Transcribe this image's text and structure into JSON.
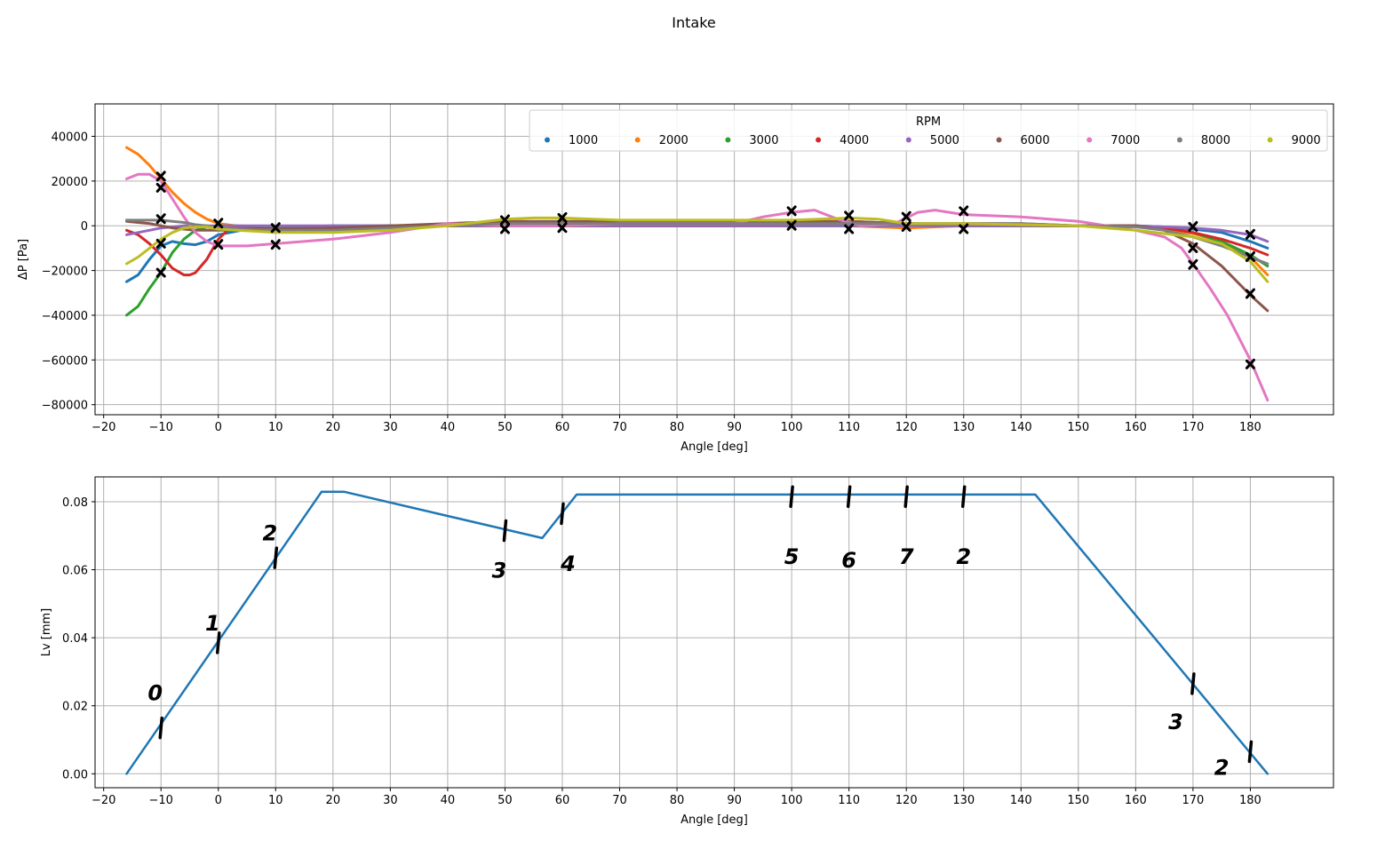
{
  "figure": {
    "suptitle": "Intake"
  },
  "chart_data": [
    {
      "type": "scatter",
      "xlabel": "Angle [deg]",
      "ylabel": "ΔP [Pa]",
      "xlim": [
        -21.5,
        194.5
      ],
      "ylim": [
        -84500,
        54500
      ],
      "xticks": [
        -20,
        -10,
        0,
        10,
        20,
        30,
        40,
        50,
        60,
        70,
        80,
        90,
        100,
        110,
        120,
        130,
        140,
        150,
        160,
        170,
        180
      ],
      "yticks": [
        -80000,
        -60000,
        -40000,
        -20000,
        0,
        20000,
        40000
      ],
      "xtick_labels": [
        "−20",
        "−10",
        "0",
        "10",
        "20",
        "30",
        "40",
        "50",
        "60",
        "70",
        "80",
        "90",
        "100",
        "110",
        "120",
        "130",
        "140",
        "150",
        "160",
        "170",
        "180"
      ],
      "ytick_labels": [
        "−80000",
        "−60000",
        "−40000",
        "−20000",
        "0",
        "20000",
        "40000"
      ],
      "grid": true,
      "legend": {
        "title": "RPM",
        "placement": "top-right",
        "ncol": 9
      },
      "series": [
        {
          "name": "1000",
          "color": "#1f77b4",
          "x": [
            -16,
            -14,
            -12,
            -10,
            -8,
            -6,
            -4,
            -2,
            0,
            5,
            10,
            20,
            30,
            40,
            50,
            60,
            70,
            80,
            90,
            100,
            110,
            120,
            130,
            140,
            150,
            160,
            165,
            170,
            175,
            180,
            183
          ],
          "y": [
            -25000,
            -22000,
            -15000,
            -9000,
            -7000,
            -8000,
            -8500,
            -7000,
            -4000,
            -1500,
            -500,
            0,
            0,
            0,
            0,
            0,
            0,
            0,
            0,
            0,
            0,
            0,
            0,
            0,
            0,
            0,
            -500,
            -1500,
            -3000,
            -7000,
            -10000
          ]
        },
        {
          "name": "2000",
          "color": "#ff7f0e",
          "x": [
            -16,
            -14,
            -12,
            -10,
            -8,
            -6,
            -4,
            -2,
            0,
            3,
            10,
            20,
            30,
            40,
            50,
            60,
            70,
            80,
            90,
            100,
            110,
            120,
            130,
            140,
            150,
            160,
            165,
            170,
            175,
            180,
            183
          ],
          "y": [
            35000,
            32000,
            27000,
            21000,
            15000,
            10000,
            6000,
            3000,
            1000,
            0,
            -1000,
            -1000,
            -500,
            0,
            0,
            0,
            0,
            0,
            0,
            0,
            0,
            -1000,
            0,
            0,
            0,
            0,
            -1500,
            -3500,
            -7000,
            -14000,
            -22000
          ]
        },
        {
          "name": "3000",
          "color": "#2ca02c",
          "x": [
            -16,
            -14,
            -12,
            -10,
            -8,
            -6,
            -4,
            -2,
            0,
            3,
            10,
            20,
            30,
            40,
            50,
            60,
            70,
            80,
            90,
            100,
            110,
            120,
            130,
            140,
            150,
            160,
            165,
            170,
            175,
            180,
            183
          ],
          "y": [
            -40000,
            -36000,
            -28000,
            -21000,
            -12000,
            -6000,
            -2000,
            -500,
            0,
            0,
            -500,
            -500,
            0,
            0,
            0,
            0,
            0,
            0,
            0,
            0,
            0,
            0,
            0,
            0,
            0,
            0,
            -1000,
            -3000,
            -7000,
            -13000,
            -18000
          ]
        },
        {
          "name": "4000",
          "color": "#d62728",
          "x": [
            -16,
            -14,
            -12,
            -10,
            -8,
            -6,
            -5,
            -4,
            -2,
            0,
            2,
            10,
            20,
            30,
            40,
            50,
            60,
            70,
            80,
            90,
            100,
            110,
            120,
            130,
            140,
            150,
            160,
            165,
            170,
            175,
            180,
            183
          ],
          "y": [
            -2000,
            -4000,
            -8000,
            -13000,
            -19000,
            -22000,
            -22000,
            -21000,
            -15000,
            -6000,
            -1000,
            -1500,
            -1000,
            0,
            0,
            0,
            0,
            0,
            0,
            0,
            0,
            2000,
            1000,
            0,
            0,
            0,
            0,
            -1000,
            -3000,
            -6000,
            -10000,
            -13000
          ]
        },
        {
          "name": "5000",
          "color": "#9467bd",
          "x": [
            -16,
            -14,
            -12,
            -10,
            -8,
            -6,
            -4,
            -2,
            0,
            10,
            20,
            30,
            40,
            50,
            60,
            70,
            80,
            90,
            100,
            110,
            120,
            130,
            140,
            150,
            160,
            165,
            170,
            175,
            180,
            183
          ],
          "y": [
            -4000,
            -3000,
            -2000,
            -1000,
            -500,
            0,
            0,
            0,
            0,
            0,
            0,
            0,
            0,
            0,
            0,
            0,
            0,
            0,
            0,
            0,
            0,
            0,
            0,
            0,
            0,
            -500,
            -1000,
            -2000,
            -4000,
            -7000
          ]
        },
        {
          "name": "6000",
          "color": "#8c564b",
          "x": [
            -16,
            -12,
            -10,
            -8,
            -4,
            0,
            10,
            20,
            30,
            40,
            50,
            60,
            70,
            80,
            90,
            100,
            110,
            120,
            130,
            140,
            150,
            160,
            165,
            170,
            175,
            180,
            183
          ],
          "y": [
            2000,
            1000,
            0,
            -1000,
            -2000,
            -2000,
            -1500,
            -1000,
            0,
            1000,
            2000,
            2000,
            2000,
            2000,
            2000,
            2000,
            2000,
            1000,
            1000,
            1000,
            0,
            0,
            -2000,
            -8000,
            -18000,
            -31000,
            -38000
          ]
        },
        {
          "name": "7000",
          "color": "#e377c2",
          "x": [
            -16,
            -14,
            -12,
            -10,
            -8,
            -6,
            -4,
            -2,
            0,
            5,
            10,
            20,
            30,
            40,
            50,
            60,
            70,
            80,
            90,
            95,
            100,
            104,
            108,
            112,
            118,
            122,
            125,
            130,
            140,
            150,
            155,
            160,
            165,
            168,
            170,
            173,
            176,
            180,
            183
          ],
          "y": [
            21000,
            23000,
            23000,
            20000,
            12000,
            4000,
            -3000,
            -7000,
            -9000,
            -9000,
            -8000,
            -6000,
            -3000,
            1000,
            0,
            0,
            1000,
            1000,
            1000,
            4000,
            6000,
            7000,
            3000,
            0,
            1000,
            6000,
            7000,
            5000,
            4000,
            2000,
            0,
            -2000,
            -5000,
            -10000,
            -17000,
            -28000,
            -40000,
            -60000,
            -78000
          ]
        },
        {
          "name": "8000",
          "color": "#7f7f7f",
          "x": [
            -16,
            -14,
            -12,
            -10,
            -8,
            -6,
            -4,
            -2,
            0,
            10,
            20,
            30,
            40,
            50,
            60,
            70,
            80,
            90,
            100,
            110,
            120,
            130,
            140,
            150,
            160,
            165,
            170,
            175,
            180,
            183
          ],
          "y": [
            2500,
            2500,
            2500,
            2500,
            2000,
            1500,
            500,
            0,
            -1000,
            -2000,
            -2000,
            -1000,
            0,
            1000,
            1000,
            1000,
            1000,
            1000,
            1000,
            1000,
            1000,
            1000,
            1000,
            0,
            -500,
            -2000,
            -5000,
            -9000,
            -14000,
            -17000
          ]
        },
        {
          "name": "9000",
          "color": "#bcbd22",
          "x": [
            -16,
            -14,
            -12,
            -10,
            -8,
            -6,
            -4,
            -2,
            0,
            10,
            20,
            30,
            40,
            45,
            50,
            55,
            60,
            70,
            80,
            90,
            100,
            105,
            110,
            115,
            120,
            130,
            140,
            150,
            160,
            165,
            170,
            175,
            180,
            183
          ],
          "y": [
            -17000,
            -14000,
            -10000,
            -6000,
            -3000,
            -1000,
            -500,
            -500,
            -1500,
            -3000,
            -3000,
            -2000,
            0,
            1500,
            3000,
            3500,
            3500,
            2500,
            2500,
            2500,
            2500,
            3000,
            3500,
            3000,
            1000,
            1000,
            500,
            0,
            -2000,
            -3500,
            -5000,
            -8000,
            -16000,
            -25000
          ]
        }
      ]
    },
    {
      "type": "line",
      "xlabel": "Angle [deg]",
      "ylabel": "Lv [mm]",
      "xlim": [
        -21.5,
        194.5
      ],
      "ylim": [
        -0.0041,
        0.0873
      ],
      "xticks": [
        -20,
        -10,
        0,
        10,
        20,
        30,
        40,
        50,
        60,
        70,
        80,
        90,
        100,
        110,
        120,
        130,
        140,
        150,
        160,
        170,
        180
      ],
      "yticks": [
        0.0,
        0.02,
        0.04,
        0.06,
        0.08
      ],
      "xtick_labels": [
        "−20",
        "−10",
        "0",
        "10",
        "20",
        "30",
        "40",
        "50",
        "60",
        "70",
        "80",
        "90",
        "100",
        "110",
        "120",
        "130",
        "140",
        "150",
        "160",
        "170",
        "180"
      ],
      "ytick_labels": [
        "0.00",
        "0.02",
        "0.04",
        "0.06",
        "0.08"
      ],
      "grid": true,
      "series": [
        {
          "color": "#1f77b4",
          "x": [
            -16,
            18,
            22,
            56.5,
            62.5,
            142.5,
            183
          ],
          "y": [
            0.0,
            0.0829,
            0.0829,
            0.0693,
            0.0821,
            0.0821,
            0.0
          ]
        }
      ]
    }
  ],
  "annotations": {
    "top_cross_marks": [
      [
        -10,
        22000
      ],
      [
        -10,
        17000
      ],
      [
        -10,
        3000
      ],
      [
        -10,
        -8000
      ],
      [
        -10,
        -21000
      ],
      [
        0,
        1000
      ],
      [
        0,
        -8500
      ],
      [
        10,
        -1000
      ],
      [
        10,
        -8500
      ],
      [
        50,
        2500
      ],
      [
        50,
        -1500
      ],
      [
        60,
        3500
      ],
      [
        60,
        -1000
      ],
      [
        100,
        6500
      ],
      [
        100,
        0
      ],
      [
        110,
        4500
      ],
      [
        110,
        -1500
      ],
      [
        120,
        4000
      ],
      [
        120,
        -500
      ],
      [
        130,
        6500
      ],
      [
        130,
        -1500
      ],
      [
        170,
        -500
      ],
      [
        170,
        -10000
      ],
      [
        170,
        -17500
      ],
      [
        180,
        -4000
      ],
      [
        180,
        -14000
      ],
      [
        180,
        -30500
      ],
      [
        180,
        -62000
      ]
    ],
    "bottom_tick_marks": [
      [
        -10,
        0.0135
      ],
      [
        0,
        0.0385
      ],
      [
        10,
        0.0635
      ],
      [
        50,
        0.0715
      ],
      [
        60,
        0.0765
      ],
      [
        100,
        0.0815
      ],
      [
        110,
        0.0815
      ],
      [
        120,
        0.0815
      ],
      [
        130,
        0.0815
      ],
      [
        170,
        0.0265
      ],
      [
        180,
        0.0065
      ]
    ],
    "bottom_handwritten": [
      {
        "text": "0",
        "x": -11,
        "y": 0.0235
      },
      {
        "text": "1",
        "x": -1,
        "y": 0.044
      },
      {
        "text": "2",
        "x": 9,
        "y": 0.0705
      },
      {
        "text": "3",
        "x": 49,
        "y": 0.0595
      },
      {
        "text": "4",
        "x": 61,
        "y": 0.0615
      },
      {
        "text": "5",
        "x": 100,
        "y": 0.0635
      },
      {
        "text": "6",
        "x": 110,
        "y": 0.0625
      },
      {
        "text": "7",
        "x": 120,
        "y": 0.0635
      },
      {
        "text": "2",
        "x": 130,
        "y": 0.0635
      },
      {
        "text": "3",
        "x": 167,
        "y": 0.015
      },
      {
        "text": "2",
        "x": 175,
        "y": 0.0015
      }
    ]
  }
}
